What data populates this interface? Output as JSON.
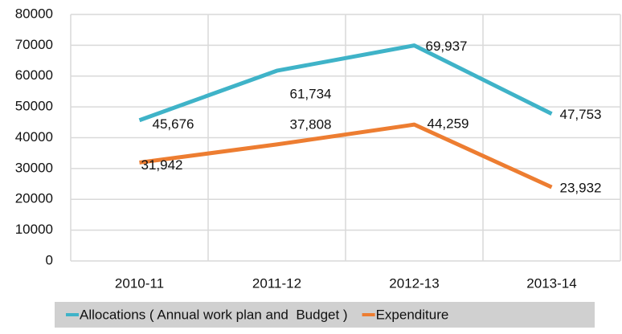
{
  "chart_data": {
    "type": "line",
    "categories": [
      "2010-11",
      "2011-12",
      "2012-13",
      "2013-14"
    ],
    "series": [
      {
        "name": "Allocations ( Annual work plan and  Budget )",
        "color": "#3fb3c8",
        "values": [
          45676,
          61734,
          69937,
          47753
        ],
        "value_labels": [
          "45,676",
          "61,734",
          "69,937",
          "47,753"
        ]
      },
      {
        "name": "Expenditure",
        "color": "#ed7d31",
        "values": [
          31942,
          37808,
          44259,
          23932
        ],
        "value_labels": [
          "31,942",
          "37,808",
          "44,259",
          "23,932"
        ]
      }
    ],
    "ylim": [
      0,
      80000
    ],
    "yticks": [
      0,
      10000,
      20000,
      30000,
      40000,
      50000,
      60000,
      70000,
      80000
    ],
    "grid": true,
    "legend": "bottom"
  }
}
